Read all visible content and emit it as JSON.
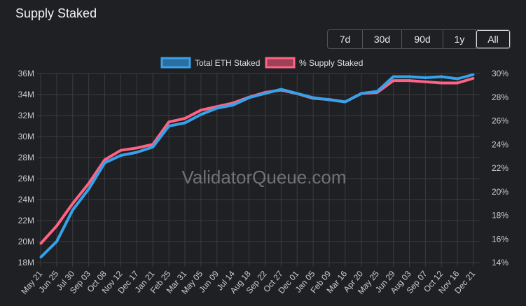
{
  "title": "Supply Staked",
  "range_buttons": [
    {
      "label": "7d"
    },
    {
      "label": "30d"
    },
    {
      "label": "90d"
    },
    {
      "label": "1y"
    },
    {
      "label": "All",
      "active": true
    }
  ],
  "watermark": "ValidatorQueue.com",
  "colors": {
    "eth": "#36a2eb",
    "pct": "#ff6384",
    "background": "#1e2023",
    "grid": "#3a3c40"
  },
  "chart_data": {
    "type": "line",
    "x_tick_labels": [
      "May 21",
      "Jun 25",
      "Jul 30",
      "Sep 03",
      "Oct 08",
      "Nov 12",
      "Dec 17",
      "Jan 21",
      "Feb 25",
      "Mar 31",
      "May 05",
      "Jun 09",
      "Jul 14",
      "Aug 18",
      "Sep 22",
      "Oct 27",
      "Dec 01",
      "Jan 05",
      "Feb 09",
      "Mar 16",
      "Apr 20",
      "May 25",
      "Jun 29",
      "Aug 03",
      "Sep 07",
      "Oct 12",
      "Nov 16",
      "Dec 21"
    ],
    "legend_position": "top",
    "grid": true,
    "y_left": {
      "ticks": [
        "18M",
        "20M",
        "22M",
        "24M",
        "26M",
        "28M",
        "30M",
        "32M",
        "34M",
        "36M"
      ],
      "range": [
        18,
        36
      ],
      "unit": "M"
    },
    "y_right": {
      "ticks": [
        "14%",
        "16%",
        "18%",
        "20%",
        "22%",
        "24%",
        "26%",
        "28%",
        "30%"
      ],
      "range": [
        14,
        30
      ],
      "unit": "%"
    },
    "series": [
      {
        "name": "Total ETH Staked",
        "axis": "left",
        "color": "#36a2eb",
        "values": [
          18.5,
          20.0,
          23.0,
          25.0,
          27.5,
          28.2,
          28.5,
          29.0,
          31.0,
          31.3,
          32.1,
          32.7,
          33.0,
          33.7,
          34.1,
          34.5,
          34.1,
          33.7,
          33.5,
          33.3,
          34.1,
          34.3,
          35.7,
          35.7,
          35.6,
          35.7,
          35.5,
          35.9
        ]
      },
      {
        "name": "% Supply Staked",
        "axis": "right",
        "color": "#ff6384",
        "values": [
          15.6,
          17.1,
          19.0,
          20.7,
          22.7,
          23.5,
          23.7,
          24.0,
          25.9,
          26.2,
          26.9,
          27.2,
          27.5,
          28.0,
          28.4,
          28.6,
          28.3,
          27.9,
          27.8,
          27.6,
          28.3,
          28.4,
          29.4,
          29.4,
          29.3,
          29.2,
          29.2,
          29.6
        ]
      }
    ]
  }
}
